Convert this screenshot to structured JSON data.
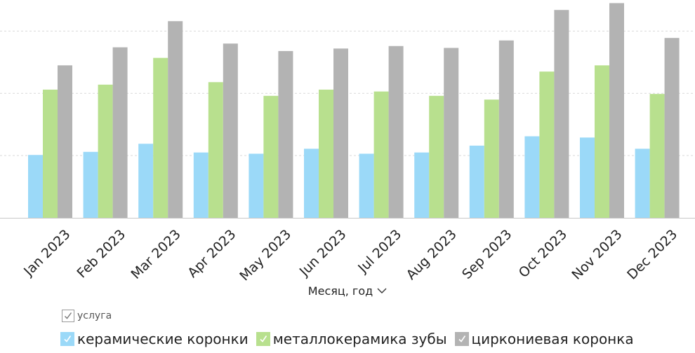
{
  "chart_data": {
    "type": "bar",
    "categories": [
      "Jan 2023",
      "Feb 2023",
      "Mar 2023",
      "Apr 2023",
      "May 2023",
      "Jun 2023",
      "Jul 2023",
      "Aug 2023",
      "Sep 2023",
      "Oct 2023",
      "Nov 2023",
      "Dec 2023"
    ],
    "series": [
      {
        "name": "керамические коронки",
        "color": "#9bd9f8",
        "values": [
          10.1,
          10.6,
          11.9,
          10.5,
          10.3,
          11.1,
          10.3,
          10.5,
          11.6,
          13.1,
          12.9,
          11.1
        ]
      },
      {
        "name": "металлокерамика зубы",
        "color": "#b8e08e",
        "values": [
          20.6,
          21.4,
          25.7,
          21.8,
          19.6,
          20.6,
          20.3,
          19.6,
          19.0,
          23.5,
          24.5,
          19.9
        ]
      },
      {
        "name": "циркониевая коронка",
        "color": "#b3b3b3",
        "values": [
          24.5,
          27.4,
          31.6,
          28.0,
          26.8,
          27.2,
          27.6,
          27.3,
          28.5,
          33.4,
          34.5,
          28.9
        ]
      }
    ],
    "ylim": [
      0,
      35
    ],
    "grid": true,
    "xlabel": "Месяц, год",
    "legend_title": "услуга",
    "legend_position": "bottom-left"
  },
  "icons": {
    "axis_dropdown": "chevron-down-icon",
    "legend_title_checkbox": "checkbox-icon",
    "legend_item_check": "check-icon"
  }
}
